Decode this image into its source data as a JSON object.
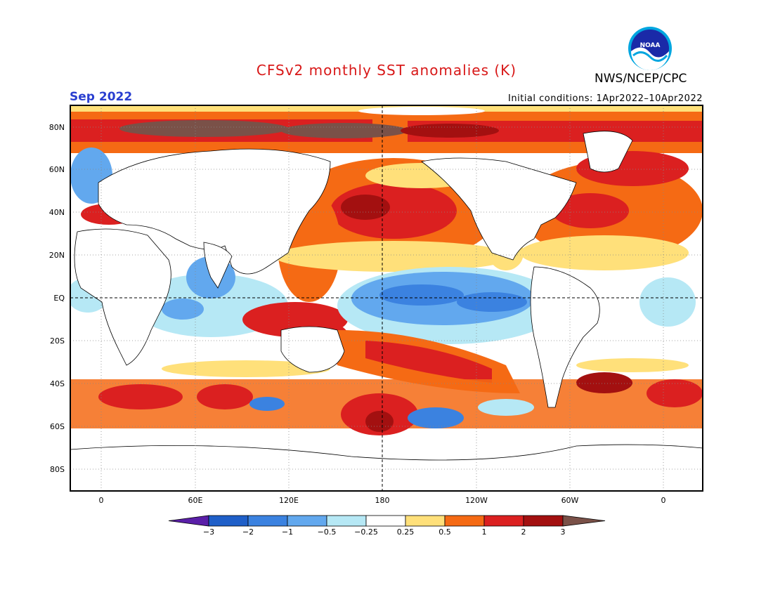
{
  "title": "CFSv2 monthly SST anomalies (K)",
  "agency": "NWS/NCEP/CPC",
  "logo_text": "NOAA",
  "month": "Sep 2022",
  "initial_conditions": "Initial conditions: 1Apr2022–10Apr2022",
  "lat_labels": [
    "80N",
    "60N",
    "40N",
    "20N",
    "EQ",
    "20S",
    "40S",
    "60S",
    "80S"
  ],
  "lon_labels": [
    "0",
    "60E",
    "120E",
    "180",
    "120W",
    "60W",
    "0"
  ],
  "colorbar": {
    "labels": [
      "−3",
      "−2",
      "−1",
      "−0.5",
      "−0.25",
      "0.25",
      "0.5",
      "1",
      "2",
      "3"
    ],
    "colors": [
      "#5a1fa8",
      "#1f5fc8",
      "#3b82e0",
      "#62a8ee",
      "#b6e8f5",
      "#ffffff",
      "#ffe07a",
      "#f56a14",
      "#db2020",
      "#a31010",
      "#7a5148"
    ]
  }
}
